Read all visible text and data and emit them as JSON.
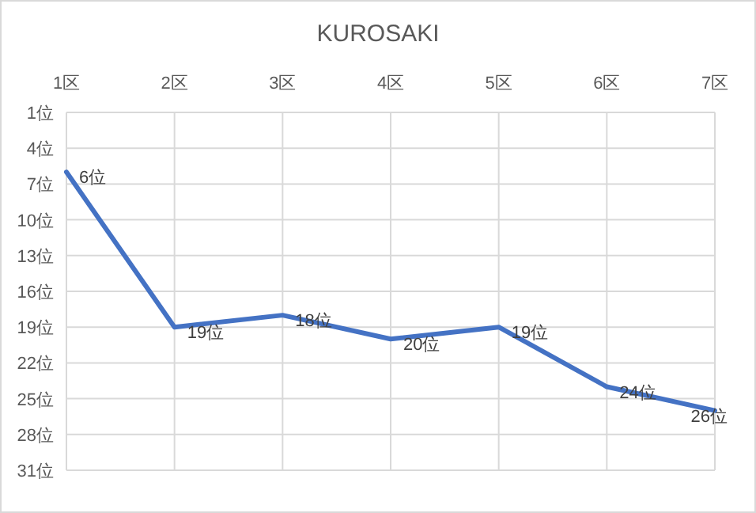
{
  "chart_data": {
    "type": "line",
    "title": "KUROSAKI",
    "categories": [
      "1区",
      "2区",
      "3区",
      "4区",
      "5区",
      "6区",
      "7区"
    ],
    "series": [
      {
        "color": "#4472c4",
        "values": [
          6,
          19,
          18,
          20,
          19,
          24,
          26
        ],
        "value_labels": [
          "6位",
          "19位",
          "18位",
          "20位",
          "19位",
          "24位",
          "26位"
        ]
      }
    ],
    "ylim": [
      31,
      1
    ],
    "yticks": [
      {
        "value": 1,
        "label": "1位"
      },
      {
        "value": 4,
        "label": "4位"
      },
      {
        "value": 7,
        "label": "7位"
      },
      {
        "value": 10,
        "label": "10位"
      },
      {
        "value": 13,
        "label": "13位"
      },
      {
        "value": 16,
        "label": "16位"
      },
      {
        "value": 19,
        "label": "19位"
      },
      {
        "value": 22,
        "label": "22位"
      },
      {
        "value": 25,
        "label": "25位"
      },
      {
        "value": 28,
        "label": "28位"
      },
      {
        "value": 31,
        "label": "31位"
      }
    ],
    "grid": true
  }
}
